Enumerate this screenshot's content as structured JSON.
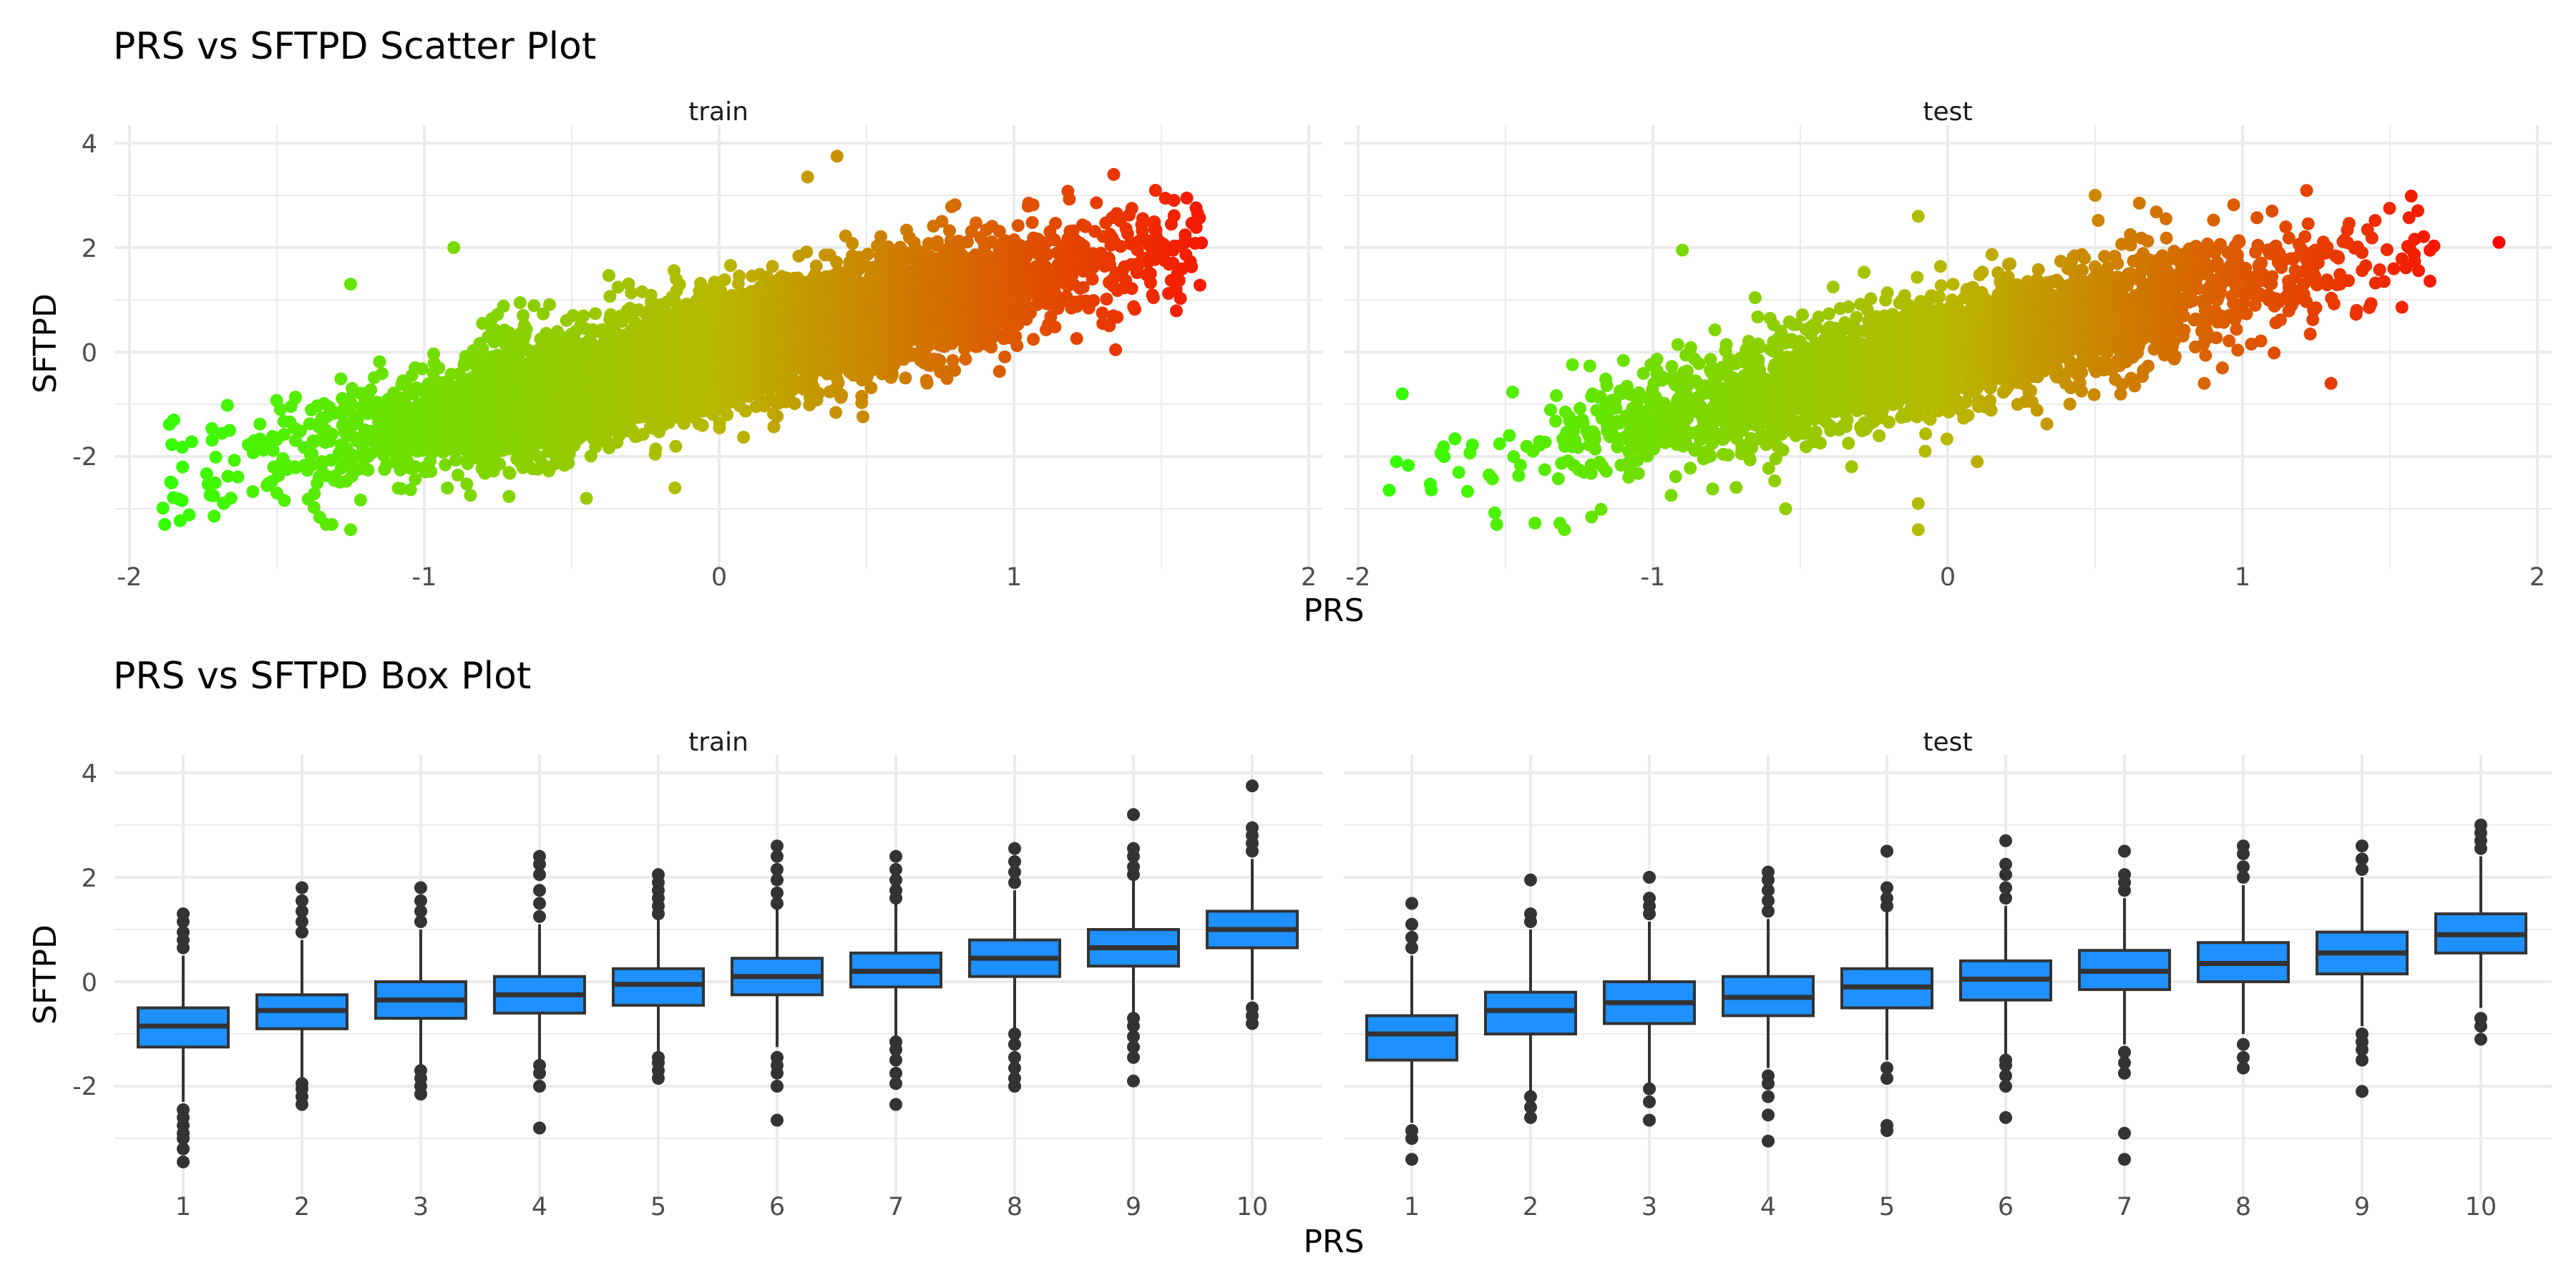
{
  "chart_data": [
    {
      "type": "scatter",
      "title": "PRS vs SFTPD Scatter Plot",
      "xlabel": "PRS",
      "ylabel": "SFTPD",
      "xlim": [
        -2,
        2
      ],
      "ylim": [
        -3.5,
        4
      ],
      "x_ticks": [
        "-2",
        "-1",
        "0",
        "1",
        "2"
      ],
      "y_ticks": [
        "-2",
        "0",
        "2",
        "4"
      ],
      "grid": true,
      "color_scale": {
        "low": "#33ff00",
        "mid": "#b8b800",
        "high": "#ff0000"
      },
      "trend": {
        "intercept": 0.0,
        "slope": 1.3,
        "noise_sd": 0.55
      },
      "panels": [
        {
          "name": "train",
          "n_points": 6000,
          "highlight_points": [
            {
              "x": 0.4,
              "y": 3.75
            },
            {
              "x": -1.25,
              "y": -3.4
            },
            {
              "x": -1.85,
              "y": -1.3
            },
            {
              "x": -1.82,
              "y": -2.2
            },
            {
              "x": -0.15,
              "y": -2.6
            },
            {
              "x": 1.58,
              "y": 2.1
            },
            {
              "x": 1.55,
              "y": 1.2
            },
            {
              "x": -0.45,
              "y": -2.8
            },
            {
              "x": -0.9,
              "y": 2.0
            },
            {
              "x": -1.25,
              "y": 1.3
            },
            {
              "x": 1.4,
              "y": 2.75
            },
            {
              "x": 1.05,
              "y": 2.85
            },
            {
              "x": -1.68,
              "y": -2.9
            },
            {
              "x": -1.5,
              "y": -2.7
            },
            {
              "x": 0.3,
              "y": 3.35
            },
            {
              "x": 1.3,
              "y": 0.75
            }
          ]
        },
        {
          "name": "test",
          "n_points": 3000,
          "highlight_points": [
            {
              "x": 1.87,
              "y": 2.1
            },
            {
              "x": 1.3,
              "y": -0.6
            },
            {
              "x": 1.48,
              "y": 1.35
            },
            {
              "x": -1.85,
              "y": -0.8
            },
            {
              "x": -1.87,
              "y": -2.1
            },
            {
              "x": -1.3,
              "y": -3.4
            },
            {
              "x": 0.5,
              "y": 3.0
            },
            {
              "x": -0.9,
              "y": 1.95
            },
            {
              "x": -0.1,
              "y": -3.4
            },
            {
              "x": -0.1,
              "y": -2.9
            },
            {
              "x": -0.55,
              "y": -3.0
            },
            {
              "x": 1.43,
              "y": 0.85
            },
            {
              "x": 0.1,
              "y": -2.1
            },
            {
              "x": 1.1,
              "y": 2.7
            },
            {
              "x": 0.65,
              "y": 2.85
            },
            {
              "x": -0.1,
              "y": 2.6
            }
          ]
        }
      ]
    },
    {
      "type": "box",
      "title": "PRS vs SFTPD Box Plot",
      "xlabel": "PRS",
      "ylabel": "SFTPD",
      "categories": [
        "1",
        "2",
        "3",
        "4",
        "5",
        "6",
        "7",
        "8",
        "9",
        "10"
      ],
      "ylim": [
        -3.5,
        4
      ],
      "y_ticks": [
        "-2",
        "0",
        "2",
        "4"
      ],
      "grid": true,
      "box_color": "#1e90ff",
      "panels": [
        {
          "name": "train",
          "boxes": [
            {
              "q1": -1.25,
              "median": -0.85,
              "q3": -0.5,
              "lower": -2.3,
              "upper": 0.5,
              "outliers": [
                -3.45,
                -3.2,
                -3.0,
                -2.9,
                -2.75,
                -2.6,
                -2.45,
                0.65,
                0.8,
                0.95,
                1.15,
                1.3
              ]
            },
            {
              "q1": -0.9,
              "median": -0.55,
              "q3": -0.25,
              "lower": -1.85,
              "upper": 0.8,
              "outliers": [
                -2.35,
                -2.2,
                -2.05,
                -1.95,
                0.95,
                1.15,
                1.35,
                1.55,
                1.8
              ]
            },
            {
              "q1": -0.7,
              "median": -0.35,
              "q3": 0.0,
              "lower": -1.6,
              "upper": 1.0,
              "outliers": [
                -2.15,
                -2.0,
                -1.85,
                -1.7,
                1.15,
                1.35,
                1.55,
                1.8
              ]
            },
            {
              "q1": -0.6,
              "median": -0.25,
              "q3": 0.1,
              "lower": -1.5,
              "upper": 1.1,
              "outliers": [
                -2.8,
                -2.0,
                -1.75,
                -1.6,
                1.25,
                1.5,
                1.75,
                2.05,
                2.25,
                2.4
              ]
            },
            {
              "q1": -0.45,
              "median": -0.05,
              "q3": 0.25,
              "lower": -1.35,
              "upper": 1.2,
              "outliers": [
                -1.85,
                -1.7,
                -1.55,
                -1.45,
                1.3,
                1.45,
                1.6,
                1.75,
                1.9,
                2.05
              ]
            },
            {
              "q1": -0.25,
              "median": 0.1,
              "q3": 0.45,
              "lower": -1.25,
              "upper": 1.4,
              "outliers": [
                -2.65,
                -2.0,
                -1.75,
                -1.6,
                -1.45,
                1.5,
                1.7,
                1.95,
                2.15,
                2.4,
                2.6
              ]
            },
            {
              "q1": -0.1,
              "median": 0.2,
              "q3": 0.55,
              "lower": -1.05,
              "upper": 1.5,
              "outliers": [
                -2.35,
                -1.95,
                -1.75,
                -1.5,
                -1.3,
                -1.15,
                1.6,
                1.75,
                1.95,
                2.15,
                2.4
              ]
            },
            {
              "q1": 0.1,
              "median": 0.45,
              "q3": 0.8,
              "lower": -0.9,
              "upper": 1.75,
              "outliers": [
                -2.0,
                -1.85,
                -1.65,
                -1.45,
                -1.2,
                -1.0,
                1.9,
                2.1,
                2.3,
                2.55
              ]
            },
            {
              "q1": 0.3,
              "median": 0.65,
              "q3": 1.0,
              "lower": -0.6,
              "upper": 1.95,
              "outliers": [
                -1.9,
                -1.45,
                -1.25,
                -1.05,
                -0.85,
                -0.7,
                2.05,
                2.2,
                2.4,
                2.55,
                3.2
              ]
            },
            {
              "q1": 0.65,
              "median": 1.0,
              "q3": 1.35,
              "lower": -0.35,
              "upper": 2.35,
              "outliers": [
                -0.8,
                -0.65,
                -0.5,
                2.5,
                2.65,
                2.8,
                2.95,
                3.75
              ]
            }
          ]
        },
        {
          "name": "test",
          "boxes": [
            {
              "q1": -1.5,
              "median": -1.0,
              "q3": -0.65,
              "lower": -2.7,
              "upper": 0.5,
              "outliers": [
                -3.4,
                -3.0,
                -2.85,
                0.65,
                0.85,
                1.1,
                1.5
              ]
            },
            {
              "q1": -1.0,
              "median": -0.55,
              "q3": -0.2,
              "lower": -2.1,
              "upper": 1.0,
              "outliers": [
                -2.6,
                -2.4,
                -2.2,
                1.15,
                1.3,
                1.95
              ]
            },
            {
              "q1": -0.8,
              "median": -0.4,
              "q3": 0.0,
              "lower": -1.95,
              "upper": 1.15,
              "outliers": [
                -2.65,
                -2.3,
                -2.05,
                1.3,
                1.45,
                1.6,
                2.0
              ]
            },
            {
              "q1": -0.65,
              "median": -0.3,
              "q3": 0.1,
              "lower": -1.65,
              "upper": 1.2,
              "outliers": [
                -3.05,
                -2.55,
                -2.2,
                -1.95,
                -1.8,
                1.35,
                1.55,
                1.75,
                1.95,
                2.1
              ]
            },
            {
              "q1": -0.5,
              "median": -0.1,
              "q3": 0.25,
              "lower": -1.5,
              "upper": 1.35,
              "outliers": [
                -2.85,
                -2.75,
                -1.85,
                -1.65,
                1.45,
                1.6,
                1.8,
                2.5
              ]
            },
            {
              "q1": -0.35,
              "median": 0.05,
              "q3": 0.4,
              "lower": -1.4,
              "upper": 1.45,
              "outliers": [
                -2.6,
                -2.0,
                -1.8,
                -1.6,
                -1.5,
                1.6,
                1.8,
                2.05,
                2.25,
                2.7
              ]
            },
            {
              "q1": -0.15,
              "median": 0.2,
              "q3": 0.6,
              "lower": -1.2,
              "upper": 1.6,
              "outliers": [
                -3.4,
                -2.9,
                -1.75,
                -1.55,
                -1.35,
                1.75,
                1.9,
                2.05,
                2.5
              ]
            },
            {
              "q1": 0.0,
              "median": 0.35,
              "q3": 0.75,
              "lower": -1.0,
              "upper": 1.85,
              "outliers": [
                -1.65,
                -1.45,
                -1.2,
                2.0,
                2.2,
                2.45,
                2.6
              ]
            },
            {
              "q1": 0.15,
              "median": 0.55,
              "q3": 0.95,
              "lower": -0.85,
              "upper": 2.0,
              "outliers": [
                -2.1,
                -1.5,
                -1.3,
                -1.15,
                -1.0,
                2.15,
                2.35,
                2.6
              ]
            },
            {
              "q1": 0.55,
              "median": 0.9,
              "q3": 1.3,
              "lower": -0.5,
              "upper": 2.4,
              "outliers": [
                -1.1,
                -0.85,
                -0.7,
                2.55,
                2.7,
                2.85,
                3.0
              ]
            }
          ]
        }
      ]
    }
  ]
}
